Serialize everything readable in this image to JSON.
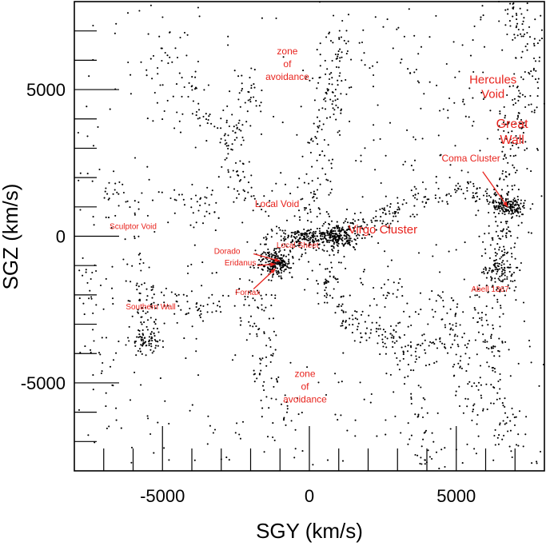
{
  "chart_data": {
    "type": "scatter",
    "title": "",
    "xlabel": "SGY (km/s)",
    "ylabel": "SGZ (km/s)",
    "xlim": [
      -8000,
      8000
    ],
    "ylim": [
      -8000,
      8000
    ],
    "xticks": [
      -5000,
      0,
      5000
    ],
    "yticks": [
      5000,
      0,
      -5000
    ],
    "xtick_labels": [
      "-5000",
      "0",
      "5000"
    ],
    "ytick_labels": [
      "5000",
      "0",
      "-5000"
    ],
    "minor_tick_step": 1000,
    "grid": false,
    "point_color": "#000000",
    "annotation_color": "#e8231d",
    "annotations": [
      {
        "id": "zone-of-avoidance-top",
        "lines": [
          "zone",
          "of",
          "avoidance"
        ],
        "x": -750,
        "y": 6200,
        "size": "m"
      },
      {
        "id": "hercules-void",
        "lines": [
          "Hercules",
          "Void"
        ],
        "x": 6250,
        "y": 5200,
        "size": "l"
      },
      {
        "id": "great-wall",
        "lines": [
          "Great",
          "Wall"
        ],
        "x": 6900,
        "y": 3700,
        "size": "xl"
      },
      {
        "id": "coma-cluster",
        "lines": [
          "Coma Cluster"
        ],
        "x": 5500,
        "y": 2550,
        "size": "m"
      },
      {
        "id": "local-void",
        "lines": [
          "Local Void"
        ],
        "x": -1100,
        "y": 1000,
        "size": "m"
      },
      {
        "id": "sculptor-void",
        "lines": [
          "Sculptor Void"
        ],
        "x": -6000,
        "y": 250,
        "size": "s"
      },
      {
        "id": "virgo-cluster",
        "lines": [
          "Virgo Cluster"
        ],
        "x": 2500,
        "y": 100,
        "size": "l"
      },
      {
        "id": "local-sheet",
        "lines": [
          "Local Sheet"
        ],
        "x": -400,
        "y": -400,
        "size": "s"
      },
      {
        "id": "dorado",
        "lines": [
          "Dorado"
        ],
        "x": -2800,
        "y": -600,
        "size": "s"
      },
      {
        "id": "eridanus",
        "lines": [
          "Eridanus"
        ],
        "x": -2350,
        "y": -1000,
        "size": "s"
      },
      {
        "id": "fornax",
        "lines": [
          "Fornax"
        ],
        "x": -2100,
        "y": -2000,
        "size": "s"
      },
      {
        "id": "abell-1367",
        "lines": [
          "Abell 1367"
        ],
        "x": 6150,
        "y": -1900,
        "size": "s"
      },
      {
        "id": "southern-wall",
        "lines": [
          "Southern Wall"
        ],
        "x": -5400,
        "y": -2500,
        "size": "s"
      },
      {
        "id": "zone-of-avoidance-bottom",
        "lines": [
          "zone",
          "of",
          "avoidance"
        ],
        "x": -150,
        "y": -4800,
        "size": "m"
      }
    ],
    "arrows": [
      {
        "from": [
          5900,
          2200
        ],
        "to": [
          6750,
          1000
        ]
      },
      {
        "from": [
          -1900,
          -600
        ],
        "to": [
          -1000,
          -850
        ]
      },
      {
        "from": [
          -1750,
          -1000
        ],
        "to": [
          -1150,
          -950
        ]
      },
      {
        "from": [
          -1900,
          -1800
        ],
        "to": [
          -1150,
          -1100
        ]
      }
    ],
    "clusters": [
      {
        "name": "Coma Cluster",
        "center": [
          6750,
          1000
        ],
        "count": 140,
        "sx": 260,
        "sy": 160
      },
      {
        "name": "Abell 1367",
        "center": [
          6400,
          -1050
        ],
        "count": 110,
        "sx": 320,
        "sy": 380
      },
      {
        "name": "Virgo Cluster",
        "center": [
          1000,
          0
        ],
        "count": 160,
        "sx": 320,
        "sy": 240
      },
      {
        "name": "Local Sheet core",
        "center": [
          0,
          0
        ],
        "count": 140,
        "sx": 600,
        "sy": 130
      },
      {
        "name": "Fornax/Eridanus",
        "center": [
          -1100,
          -950
        ],
        "count": 120,
        "sx": 230,
        "sy": 180
      },
      {
        "name": "Dorado",
        "center": [
          -1300,
          -700
        ],
        "count": 60,
        "sx": 280,
        "sy": 220
      },
      {
        "name": "Southern Wall",
        "center": [
          -5500,
          -3600
        ],
        "count": 50,
        "sx": 250,
        "sy": 200
      }
    ],
    "filaments": [
      {
        "points": [
          [
            -1000,
            -800
          ],
          [
            -200,
            -100
          ],
          [
            800,
            0
          ],
          [
            2000,
            300
          ],
          [
            3500,
            1300
          ],
          [
            5200,
            1700
          ],
          [
            6700,
            1000
          ]
        ],
        "count": 260,
        "spread": 230
      },
      {
        "points": [
          [
            6700,
            1000
          ],
          [
            6800,
            3000
          ],
          [
            7400,
            5000
          ],
          [
            7500,
            6800
          ],
          [
            6700,
            8000
          ]
        ],
        "count": 170,
        "spread": 280
      },
      {
        "points": [
          [
            6700,
            1000
          ],
          [
            6450,
            -1000
          ],
          [
            6000,
            -3000
          ],
          [
            6400,
            -5500
          ],
          [
            7000,
            -7500
          ]
        ],
        "count": 180,
        "spread": 330
      },
      {
        "points": [
          [
            400,
            -600
          ],
          [
            600,
            -1800
          ],
          [
            1300,
            -3000
          ],
          [
            2200,
            -3200
          ],
          [
            3200,
            -3800
          ],
          [
            4300,
            -3800
          ]
        ],
        "count": 160,
        "spread": 300
      },
      {
        "points": [
          [
            1000,
            7000
          ],
          [
            800,
            5500
          ],
          [
            600,
            4000
          ],
          [
            300,
            2000
          ],
          [
            -100,
            500
          ]
        ],
        "count": 150,
        "spread": 330
      },
      {
        "points": [
          [
            -2000,
            5500
          ],
          [
            -2100,
            4500
          ],
          [
            -2500,
            3500
          ],
          [
            -2800,
            2500
          ],
          [
            -1800,
            1300
          ],
          [
            -1200,
            0
          ]
        ],
        "count": 110,
        "spread": 300
      },
      {
        "points": [
          [
            -6000,
            -700
          ],
          [
            -5600,
            -2000
          ],
          [
            -5700,
            -3600
          ],
          [
            -5400,
            -3400
          ]
        ],
        "count": 70,
        "spread": 230
      },
      {
        "points": [
          [
            -1000,
            -1000
          ],
          [
            -2000,
            -2000
          ],
          [
            -3500,
            -2500
          ],
          [
            -4500,
            -2200
          ],
          [
            -5400,
            -2400
          ]
        ],
        "count": 90,
        "spread": 330
      },
      {
        "points": [
          [
            -1600,
            -1500
          ],
          [
            -1800,
            -3200
          ],
          [
            -1400,
            -4800
          ],
          [
            -700,
            -6800
          ]
        ],
        "count": 80,
        "spread": 300
      },
      {
        "points": [
          [
            -3000,
            1200
          ],
          [
            -4000,
            1000
          ],
          [
            -6000,
            1200
          ],
          [
            -7500,
            2000
          ]
        ],
        "count": 55,
        "spread": 300
      },
      {
        "points": [
          [
            2000,
            -1000
          ],
          [
            3000,
            -2500
          ],
          [
            3200,
            -4500
          ],
          [
            3800,
            -6500
          ],
          [
            4200,
            -7800
          ]
        ],
        "count": 100,
        "spread": 330
      },
      {
        "points": [
          [
            4500,
            -2000
          ],
          [
            5000,
            -3000
          ],
          [
            5200,
            -4500
          ],
          [
            5600,
            -6200
          ]
        ],
        "count": 80,
        "spread": 300
      },
      {
        "points": [
          [
            -5200,
            6800
          ],
          [
            -4500,
            5500
          ],
          [
            -4000,
            4500
          ],
          [
            -3300,
            3500
          ]
        ],
        "count": 60,
        "spread": 330
      },
      {
        "points": [
          [
            2600,
            7500
          ],
          [
            3200,
            6000
          ],
          [
            4500,
            5000
          ],
          [
            6200,
            4300
          ],
          [
            7000,
            3500
          ]
        ],
        "count": 50,
        "spread": 420
      },
      {
        "points": [
          [
            -7700,
            -1000
          ],
          [
            -7200,
            -3000
          ],
          [
            -6800,
            -6000
          ]
        ],
        "count": 40,
        "spread": 280
      }
    ],
    "background_points": 480,
    "random_seed": 1367
  }
}
